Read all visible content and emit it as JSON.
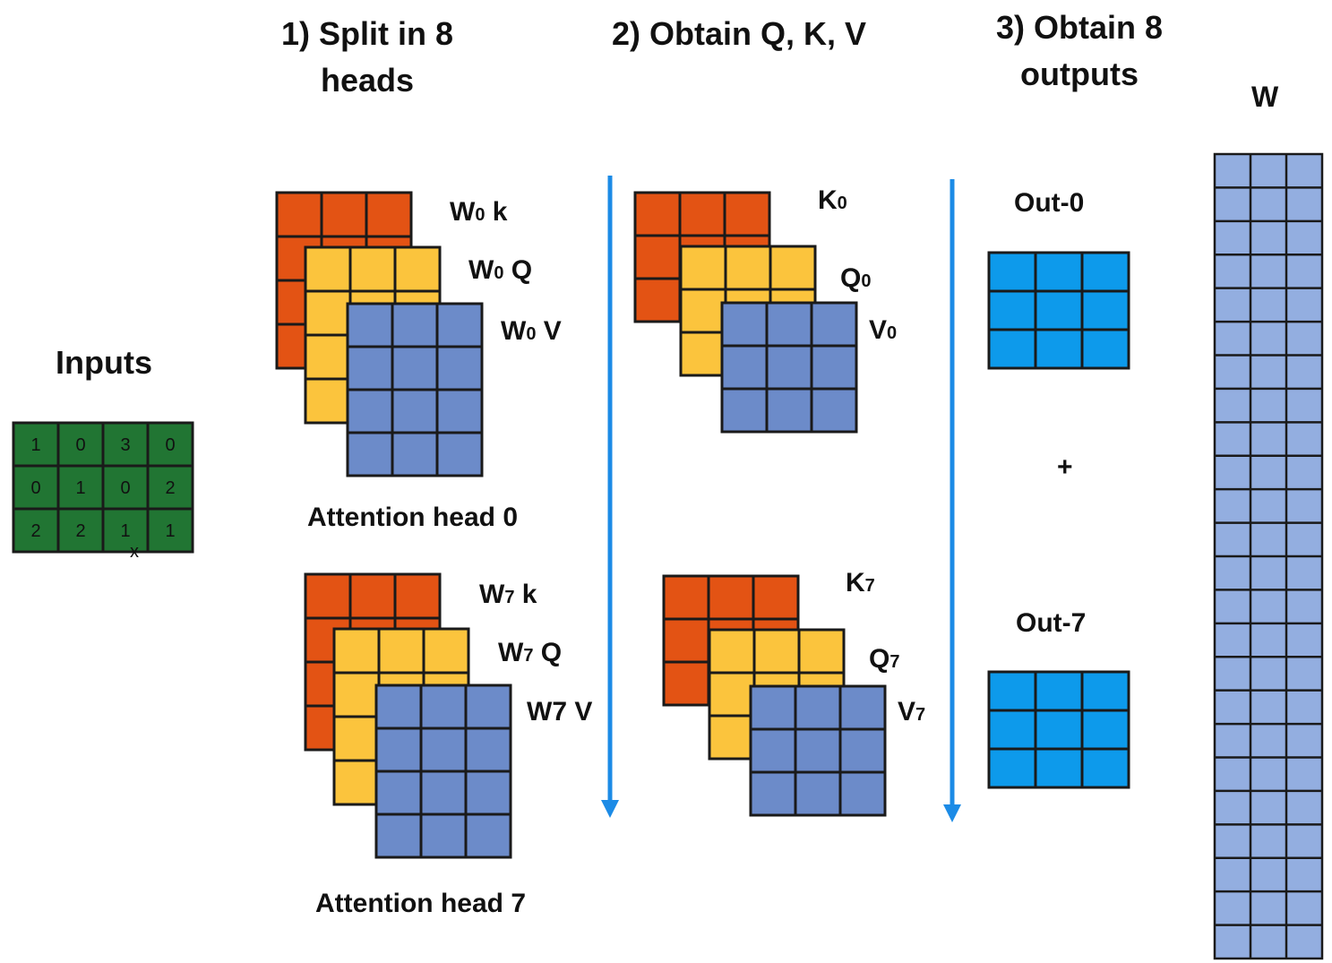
{
  "headings": {
    "step1": "1) Split in 8 heads",
    "step2": "2) Obtain Q, K, V",
    "step3": "3) Obtain 8 outputs",
    "w": "W"
  },
  "inputs": {
    "label": "Inputs",
    "values": [
      [
        1,
        0,
        3,
        0
      ],
      [
        0,
        1,
        0,
        2
      ],
      [
        2,
        2,
        1,
        1
      ]
    ],
    "mark": "x"
  },
  "head0": {
    "caption": "Attention head 0",
    "wk": {
      "main": "W",
      "sub": "0",
      "rest": " k"
    },
    "wq": {
      "main": "W",
      "sub": "0",
      "rest": " Q"
    },
    "wv": {
      "main": "W",
      "sub": "0",
      "rest": " V"
    },
    "k": {
      "main": "K",
      "sub": "0"
    },
    "q": {
      "main": "Q",
      "sub": "0"
    },
    "v": {
      "main": "V",
      "sub": "0"
    }
  },
  "head7": {
    "caption": "Attention head 7",
    "wk": {
      "main": "W",
      "sub": "7",
      "rest": " k"
    },
    "wq": {
      "main": "W",
      "sub": "7",
      "rest": " Q"
    },
    "wv_text": "W7 V",
    "k": {
      "main": "K",
      "sub": "7"
    },
    "q": {
      "main": "Q",
      "sub": "7"
    },
    "v": {
      "main": "V",
      "sub": "7"
    }
  },
  "outputs": {
    "out0": "Out-0",
    "out7": "Out-7",
    "plus": "+"
  },
  "colors": {
    "orange": "#E35314",
    "yellow": "#FBC43D",
    "blue_grey": "#6C8BC9",
    "green": "#217533",
    "out_blue": "#0D9AEB",
    "w_blue": "#93AEE0",
    "arrow": "#1C8BE6",
    "stroke": "#1a1a1a"
  }
}
